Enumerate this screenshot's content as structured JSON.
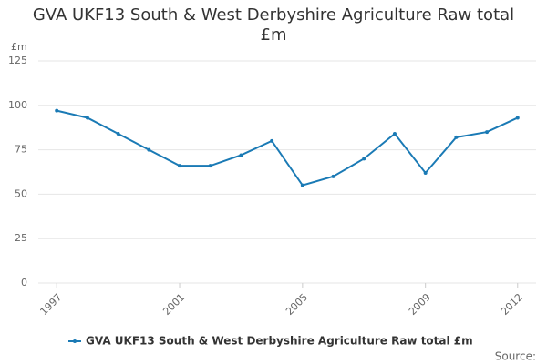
{
  "chart_data": {
    "type": "line",
    "title": "GVA UKF13 South & West Derbyshire Agriculture Raw total £m",
    "y_label": "£m",
    "source": "Source:",
    "x": [
      1997,
      1998,
      1999,
      2000,
      2001,
      2002,
      2003,
      2004,
      2005,
      2006,
      2007,
      2008,
      2009,
      2010,
      2011,
      2012
    ],
    "series": [
      {
        "name": "GVA UKF13 South & West Derbyshire Agriculture Raw total £m",
        "color": "#1a7ab5",
        "values": [
          97,
          93,
          84,
          75,
          66,
          66,
          72,
          80,
          55,
          60,
          70,
          84,
          62,
          82,
          85,
          93
        ]
      }
    ],
    "xlim": [
      1996.4,
      2012.6
    ],
    "xticks": [
      1997,
      2001,
      2005,
      2009,
      2012
    ],
    "ylim": [
      0,
      125
    ],
    "yticks": [
      0,
      25,
      50,
      75,
      100,
      125
    ],
    "grid": true
  }
}
